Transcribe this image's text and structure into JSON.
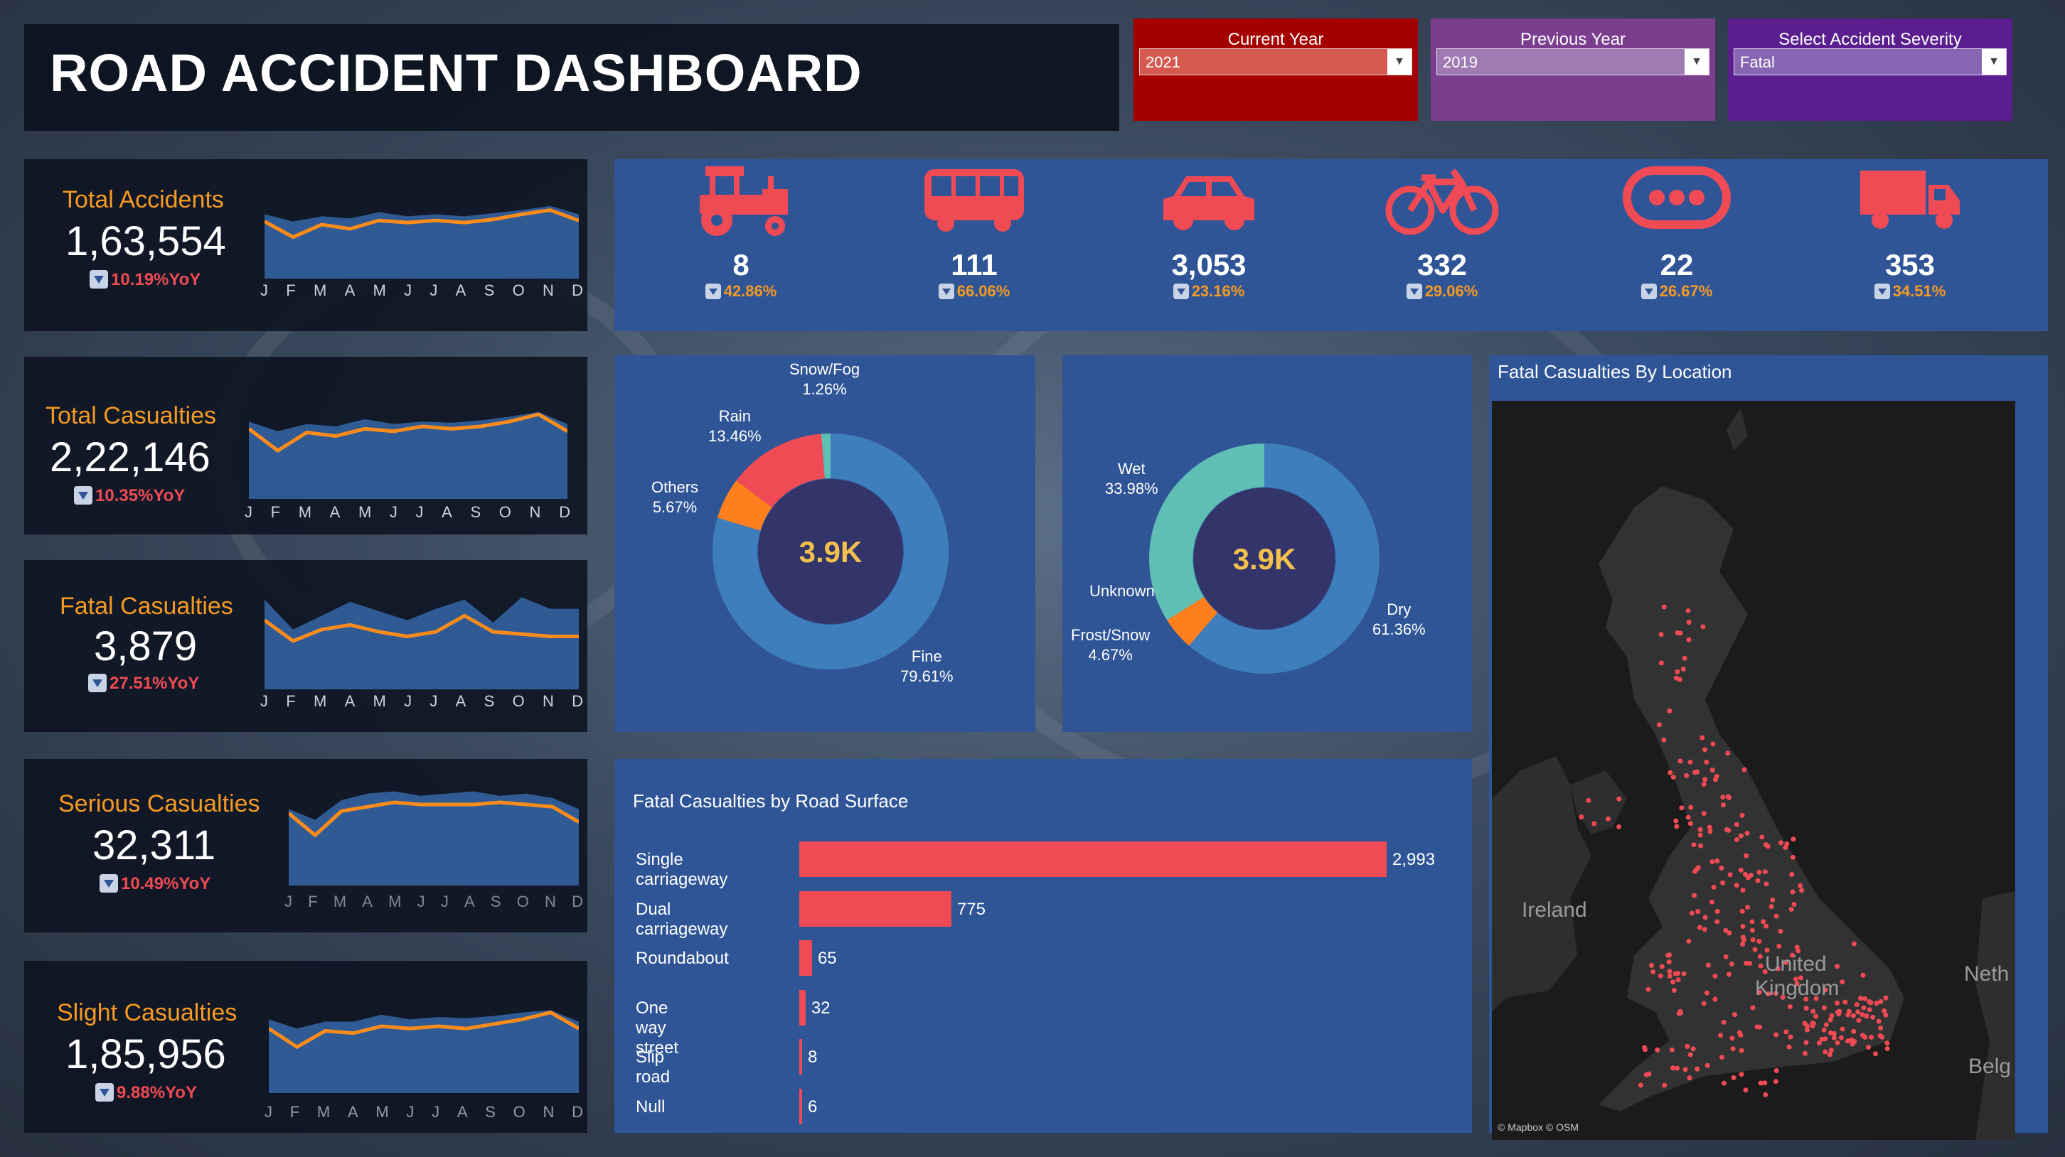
{
  "header": {
    "title": "ROAD ACCIDENT DASHBOARD"
  },
  "filters": [
    {
      "label": "Current Year",
      "value": "2021",
      "color": "#a50000"
    },
    {
      "label": "Previous Year",
      "value": "2019",
      "color": "#7b3e8f"
    },
    {
      "label": "Select Accident Severity",
      "value": "Fatal",
      "color": "#5a1e8f"
    }
  ],
  "months": [
    "J",
    "F",
    "M",
    "A",
    "M",
    "J",
    "J",
    "A",
    "S",
    "O",
    "N",
    "D"
  ],
  "kpis": [
    {
      "label": "Total Accidents",
      "value": "1,63,554",
      "yoy": "10.19%YoY",
      "area": [
        0.62,
        0.55,
        0.6,
        0.58,
        0.64,
        0.6,
        0.62,
        0.6,
        0.63,
        0.66,
        0.7,
        0.62
      ],
      "line": [
        0.55,
        0.4,
        0.52,
        0.48,
        0.56,
        0.54,
        0.56,
        0.54,
        0.57,
        0.62,
        0.66,
        0.56
      ]
    },
    {
      "label": "Total Casualties",
      "value": "2,22,146",
      "yoy": "10.35%YoY",
      "area": [
        0.64,
        0.56,
        0.62,
        0.6,
        0.66,
        0.62,
        0.64,
        0.63,
        0.65,
        0.68,
        0.72,
        0.62
      ],
      "line": [
        0.58,
        0.4,
        0.55,
        0.52,
        0.58,
        0.56,
        0.6,
        0.58,
        0.6,
        0.64,
        0.7,
        0.56
      ]
    },
    {
      "label": "Fatal Casualties",
      "value": "3,879",
      "yoy": "27.51%YoY",
      "area": [
        0.78,
        0.52,
        0.64,
        0.76,
        0.68,
        0.6,
        0.7,
        0.78,
        0.58,
        0.8,
        0.7,
        0.7
      ],
      "line": [
        0.6,
        0.42,
        0.52,
        0.56,
        0.5,
        0.46,
        0.5,
        0.64,
        0.5,
        0.48,
        0.46,
        0.46
      ]
    },
    {
      "label": "Serious Casualties",
      "value": "32,311",
      "yoy": "10.49%YoY",
      "area": [
        0.7,
        0.6,
        0.78,
        0.84,
        0.86,
        0.82,
        0.84,
        0.86,
        0.82,
        0.84,
        0.8,
        0.7
      ],
      "line": [
        0.66,
        0.46,
        0.68,
        0.72,
        0.76,
        0.74,
        0.74,
        0.74,
        0.76,
        0.74,
        0.72,
        0.58
      ]
    },
    {
      "label": "Slight Casualties",
      "value": "1,85,956",
      "yoy": "9.88%YoY",
      "area": [
        0.64,
        0.56,
        0.62,
        0.62,
        0.68,
        0.64,
        0.66,
        0.65,
        0.67,
        0.7,
        0.72,
        0.62
      ],
      "line": [
        0.56,
        0.4,
        0.54,
        0.52,
        0.58,
        0.56,
        0.58,
        0.56,
        0.6,
        0.64,
        0.7,
        0.56
      ]
    }
  ],
  "vehicles": [
    {
      "icon": "tractor-icon",
      "value": "8",
      "yoy": "42.86%"
    },
    {
      "icon": "bus-icon",
      "value": "111",
      "yoy": "66.06%"
    },
    {
      "icon": "car-icon",
      "value": "3,053",
      "yoy": "23.16%"
    },
    {
      "icon": "bicycle-icon",
      "value": "332",
      "yoy": "29.06%"
    },
    {
      "icon": "other-vehicle-icon",
      "value": "22",
      "yoy": "26.67%"
    },
    {
      "icon": "truck-icon",
      "value": "353",
      "yoy": "34.51%"
    }
  ],
  "chart_data": [
    {
      "type": "pie",
      "title": "",
      "center_label": "3.9K",
      "slices": [
        {
          "label": "Fine",
          "value": 79.61,
          "pct": "79.61%",
          "color": "#3e7ebd"
        },
        {
          "label": "Others",
          "value": 5.67,
          "pct": "5.67%",
          "color": "#ff7f1e"
        },
        {
          "label": "Rain",
          "value": 13.46,
          "pct": "13.46%",
          "color": "#f04b55"
        },
        {
          "label": "Snow/Fog",
          "value": 1.26,
          "pct": "1.26%",
          "color": "#5fbfb5"
        }
      ]
    },
    {
      "type": "pie",
      "title": "",
      "center_label": "3.9K",
      "slices": [
        {
          "label": "Dry",
          "value": 61.36,
          "pct": "61.36%",
          "color": "#3e7ebd"
        },
        {
          "label": "Frost/Snow",
          "value": 4.67,
          "pct": "4.67%",
          "color": "#ff7f1e"
        },
        {
          "label": "Unknown",
          "value": 0.0,
          "pct": "",
          "color": "#f04b55"
        },
        {
          "label": "Wet",
          "value": 33.98,
          "pct": "33.98%",
          "color": "#5fbfb5"
        }
      ]
    },
    {
      "type": "bar",
      "title": "Fatal Casualties by Road Surface",
      "categories": [
        "Single carriageway",
        "Dual carriageway",
        "Roundabout",
        "One way street",
        "Slip road",
        "Null"
      ],
      "values": [
        2993,
        775,
        65,
        32,
        8,
        6
      ],
      "labels": [
        "2,993",
        "775",
        "65",
        "32",
        "8",
        "6"
      ]
    }
  ],
  "map": {
    "title": "Fatal Casualties By Location",
    "labels": [
      "Ireland",
      "United",
      "Kingdom",
      "Neth",
      "Belg"
    ],
    "attribution": "© Mapbox © OSM"
  }
}
